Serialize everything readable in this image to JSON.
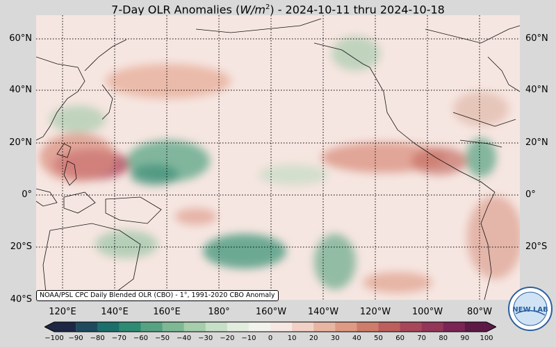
{
  "title_prefix": "7-Day OLR Anomalies (",
  "title_unit": "W/m",
  "title_unit_exp": "2",
  "title_suffix": ") - 2024-10-11 thru 2024-10-18",
  "lat_labels": [
    "60°N",
    "40°N",
    "20°N",
    "0°",
    "20°S",
    "40°S"
  ],
  "lon_labels": [
    "120°E",
    "140°E",
    "160°E",
    "180°",
    "160°W",
    "140°W",
    "120°W",
    "100°W",
    "80°W"
  ],
  "credit": "NOAA/PSL CPC Daily Blended OLR (CBO) - 1°, 1991-2020 CBO Anomaly",
  "colorbar": {
    "min": -100,
    "max": 100,
    "ticks": [
      "−100",
      "−90",
      "−80",
      "−70",
      "−60",
      "−50",
      "−40",
      "−30",
      "−20",
      "−10",
      "0",
      "10",
      "20",
      "30",
      "40",
      "50",
      "60",
      "70",
      "80",
      "90",
      "100"
    ],
    "negative_colors": [
      "#1d2744",
      "#1f4a5e",
      "#1d6f6b",
      "#2f8a74",
      "#56a283",
      "#7fb894",
      "#a6cdac",
      "#c8dfc7",
      "#e2ede0",
      "#f3f3ee"
    ],
    "positive_colors": [
      "#f7e8e3",
      "#f2d2c7",
      "#e9b5a3",
      "#df9a84",
      "#cf7d6b",
      "#bc5f5d",
      "#a84759",
      "#933658",
      "#7a2554",
      "#5d1a46"
    ]
  },
  "logo_text": "NEW LAB"
}
